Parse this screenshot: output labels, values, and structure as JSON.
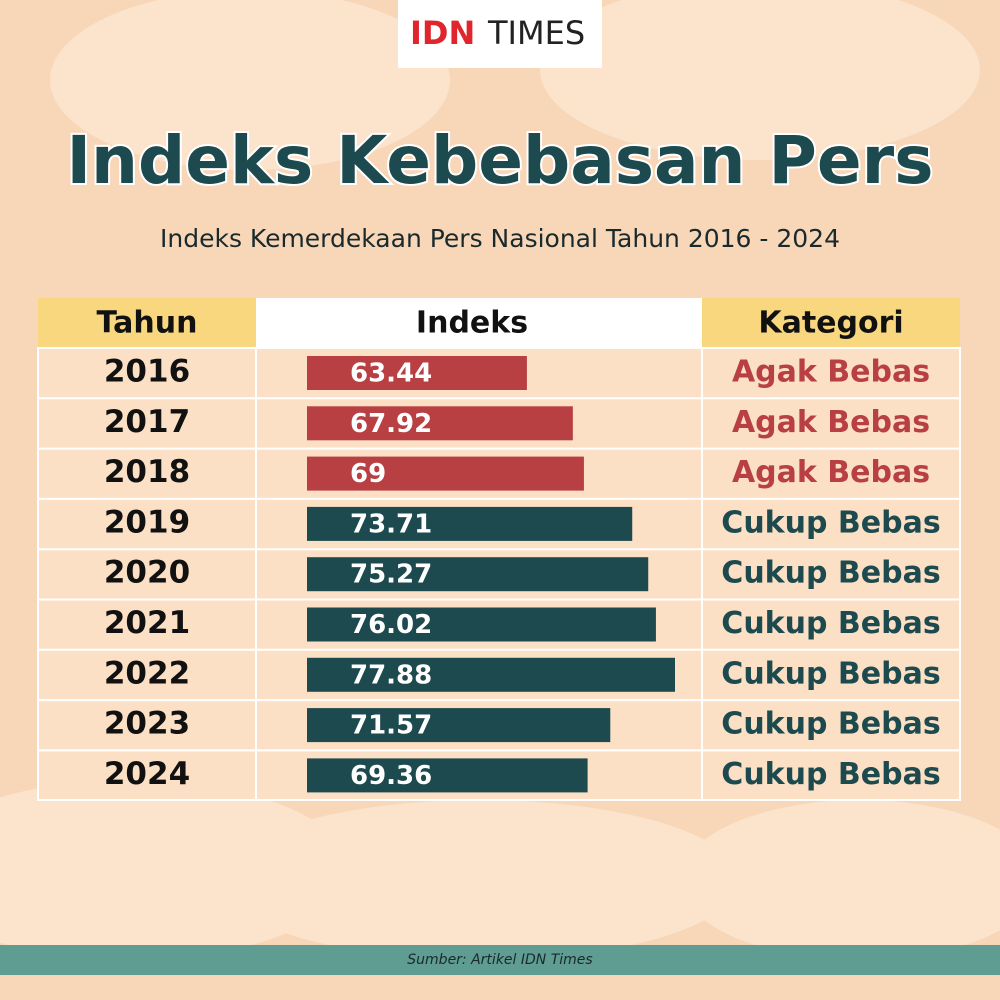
{
  "logo": {
    "brand": "IDN",
    "name": "TIMES"
  },
  "chart_data": {
    "type": "bar",
    "title": "Indeks Kebebasan Pers",
    "subtitle": "Indeks Kemerdekaan Pers Nasional Tahun 2016 - 2024",
    "headers": [
      "Tahun",
      "Indeks",
      "Kategori"
    ],
    "categories": [
      "2016",
      "2017",
      "2018",
      "2019",
      "2020",
      "2021",
      "2022",
      "2023",
      "2024"
    ],
    "values": [
      63.44,
      67.92,
      69,
      73.71,
      75.27,
      76.02,
      77.88,
      71.57,
      69.36
    ],
    "kategori": [
      "Agak Bebas",
      "Agak Bebas",
      "Agak Bebas",
      "Cukup Bebas",
      "Cukup Bebas",
      "Cukup Bebas",
      "Cukup Bebas",
      "Cukup Bebas",
      "Cukup Bebas"
    ],
    "colors": [
      "#b83f42",
      "#b83f42",
      "#b83f42",
      "#1d4a4e",
      "#1d4a4e",
      "#1d4a4e",
      "#1d4a4e",
      "#1d4a4e",
      "#1d4a4e"
    ],
    "xlim": [
      42,
      81
    ]
  },
  "source": "Sumber: Artikel IDN Times"
}
